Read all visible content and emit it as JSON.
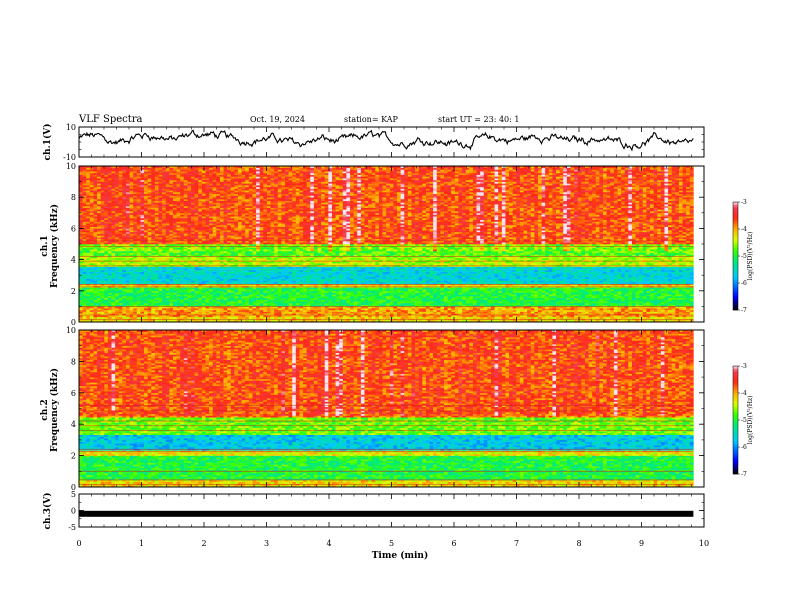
{
  "header": {
    "title": "VLF Spectra",
    "date": "Oct. 19, 2024",
    "station": "station= KAP",
    "start": "start UT =  23: 40: 1"
  },
  "chart_data": [
    {
      "type": "line",
      "panel": "ch1-waveform",
      "ylabel": "ch.1(V)",
      "ylim": [
        -10,
        10
      ],
      "y_ticks": [
        "10",
        "-10"
      ],
      "xlim": [
        0,
        10
      ],
      "description_values": {
        "mean": 2,
        "amplitude": 4
      }
    },
    {
      "type": "heatmap",
      "panel": "ch1-spectrogram",
      "ylabel": "ch.1\nFrequency (kHz)",
      "ylabel_lines": [
        "ch.1",
        "Frequency (kHz)"
      ],
      "ylim": [
        0,
        10
      ],
      "y_ticks": [
        "0",
        "2",
        "4",
        "6",
        "8",
        "10"
      ],
      "xlim": [
        0,
        9.83
      ],
      "bands": [
        {
          "from": 0.0,
          "to": 0.3,
          "level": -4.2
        },
        {
          "from": 0.3,
          "to": 1.0,
          "level": -4.0
        },
        {
          "from": 1.0,
          "to": 2.2,
          "level": -5.0
        },
        {
          "from": 2.2,
          "to": 2.5,
          "level": -4.2
        },
        {
          "from": 2.5,
          "to": 3.6,
          "level": -5.6
        },
        {
          "from": 3.6,
          "to": 4.2,
          "level": -4.5
        },
        {
          "from": 4.2,
          "to": 5.0,
          "level": -4.8
        },
        {
          "from": 5.0,
          "to": 10.0,
          "level": -3.8
        }
      ],
      "colorbar": {
        "min": -7,
        "max": -3,
        "ticks": [
          "-3",
          "-4",
          "-5",
          "-6",
          "-7"
        ],
        "label": "log(PSD)(V²/Hz)"
      }
    },
    {
      "type": "heatmap",
      "panel": "ch2-spectrogram",
      "ylabel": "ch.2\nFrequency (kHz)",
      "ylabel_lines": [
        "ch.2",
        "Frequency (kHz)"
      ],
      "ylim": [
        0,
        10
      ],
      "y_ticks": [
        "0",
        "2",
        "4",
        "6",
        "8",
        "10"
      ],
      "xlim": [
        0,
        9.83
      ],
      "bands": [
        {
          "from": 0.0,
          "to": 0.4,
          "level": -4.2
        },
        {
          "from": 0.4,
          "to": 2.0,
          "level": -5.0
        },
        {
          "from": 2.0,
          "to": 2.3,
          "level": -4.3
        },
        {
          "from": 2.3,
          "to": 3.3,
          "level": -5.7
        },
        {
          "from": 3.3,
          "to": 4.4,
          "level": -4.7
        },
        {
          "from": 4.4,
          "to": 10.0,
          "level": -3.8
        }
      ],
      "colorbar": {
        "min": -7,
        "max": -3,
        "ticks": [
          "-3",
          "-4",
          "-5",
          "-6",
          "-7"
        ],
        "label": "log(PSD)(V²/Hz)"
      }
    },
    {
      "type": "line",
      "panel": "ch3-waveform",
      "ylabel": "ch.3(V)",
      "ylim": [
        -5,
        5
      ],
      "y_ticks": [
        "5",
        "0",
        "-5"
      ],
      "xlim": [
        0,
        9.83
      ],
      "y_value": -1
    }
  ],
  "xaxis": {
    "label": "Time (min)",
    "ticks": [
      "0",
      "1",
      "2",
      "3",
      "4",
      "5",
      "6",
      "7",
      "8",
      "9",
      "10"
    ],
    "range": [
      0,
      10
    ]
  },
  "colors": {
    "line": "#000000",
    "background": "#ffffff"
  }
}
